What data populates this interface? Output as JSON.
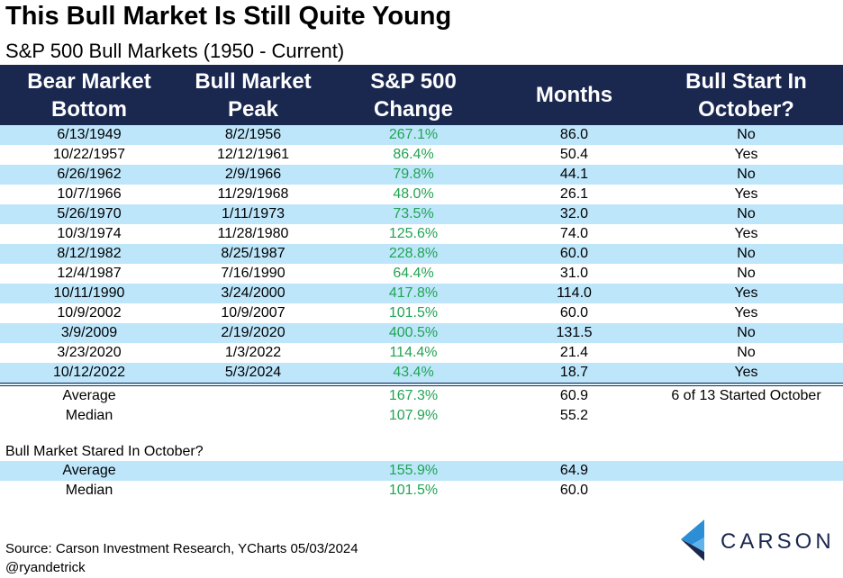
{
  "title": "This Bull Market Is Still Quite Young",
  "subtitle": "S&P 500 Bull Markets (1950 - Current)",
  "chart_data": {
    "type": "table",
    "columns": [
      {
        "line1": "Bear Market",
        "line2": "Bottom"
      },
      {
        "line1": "Bull Market",
        "line2": "Peak"
      },
      {
        "line1": "S&P 500",
        "line2": "Change"
      },
      {
        "line1": "Months",
        "line2": ""
      },
      {
        "line1": "Bull Start In",
        "line2": "October?"
      }
    ],
    "rows": [
      [
        "6/13/1949",
        "8/2/1956",
        "267.1%",
        "86.0",
        "No"
      ],
      [
        "10/22/1957",
        "12/12/1961",
        "86.4%",
        "50.4",
        "Yes"
      ],
      [
        "6/26/1962",
        "2/9/1966",
        "79.8%",
        "44.1",
        "No"
      ],
      [
        "10/7/1966",
        "11/29/1968",
        "48.0%",
        "26.1",
        "Yes"
      ],
      [
        "5/26/1970",
        "1/11/1973",
        "73.5%",
        "32.0",
        "No"
      ],
      [
        "10/3/1974",
        "11/28/1980",
        "125.6%",
        "74.0",
        "Yes"
      ],
      [
        "8/12/1982",
        "8/25/1987",
        "228.8%",
        "60.0",
        "No"
      ],
      [
        "12/4/1987",
        "7/16/1990",
        "64.4%",
        "31.0",
        "No"
      ],
      [
        "10/11/1990",
        "3/24/2000",
        "417.8%",
        "114.0",
        "Yes"
      ],
      [
        "10/9/2002",
        "10/9/2007",
        "101.5%",
        "60.0",
        "Yes"
      ],
      [
        "3/9/2009",
        "2/19/2020",
        "400.5%",
        "131.5",
        "No"
      ],
      [
        "3/23/2020",
        "1/3/2022",
        "114.4%",
        "21.4",
        "No"
      ],
      [
        "10/12/2022",
        "5/3/2024",
        "43.4%",
        "18.7",
        "Yes"
      ]
    ],
    "summary_all": [
      {
        "label": "Average",
        "change": "167.3%",
        "months": "60.9",
        "note": "6 of 13 Started October"
      },
      {
        "label": "Median",
        "change": "107.9%",
        "months": "55.2",
        "note": ""
      }
    ],
    "october_section_title": "Bull Market Stared In October?",
    "summary_october": [
      {
        "label": "Average",
        "change": "155.9%",
        "months": "64.9"
      },
      {
        "label": "Median",
        "change": "101.5%",
        "months": "60.0"
      }
    ]
  },
  "colors": {
    "header_bg": "#1a2850",
    "band_bg": "#bde6fb",
    "positive_text": "#21a453",
    "logo_light": "#2c8fd6",
    "logo_dark": "#1a2850"
  },
  "source": "Source: Carson Investment Research, YCharts 05/03/2024",
  "handle": "@ryandetrick",
  "logo": {
    "text": "CARSON",
    "icon": "carson-chevron-icon"
  }
}
